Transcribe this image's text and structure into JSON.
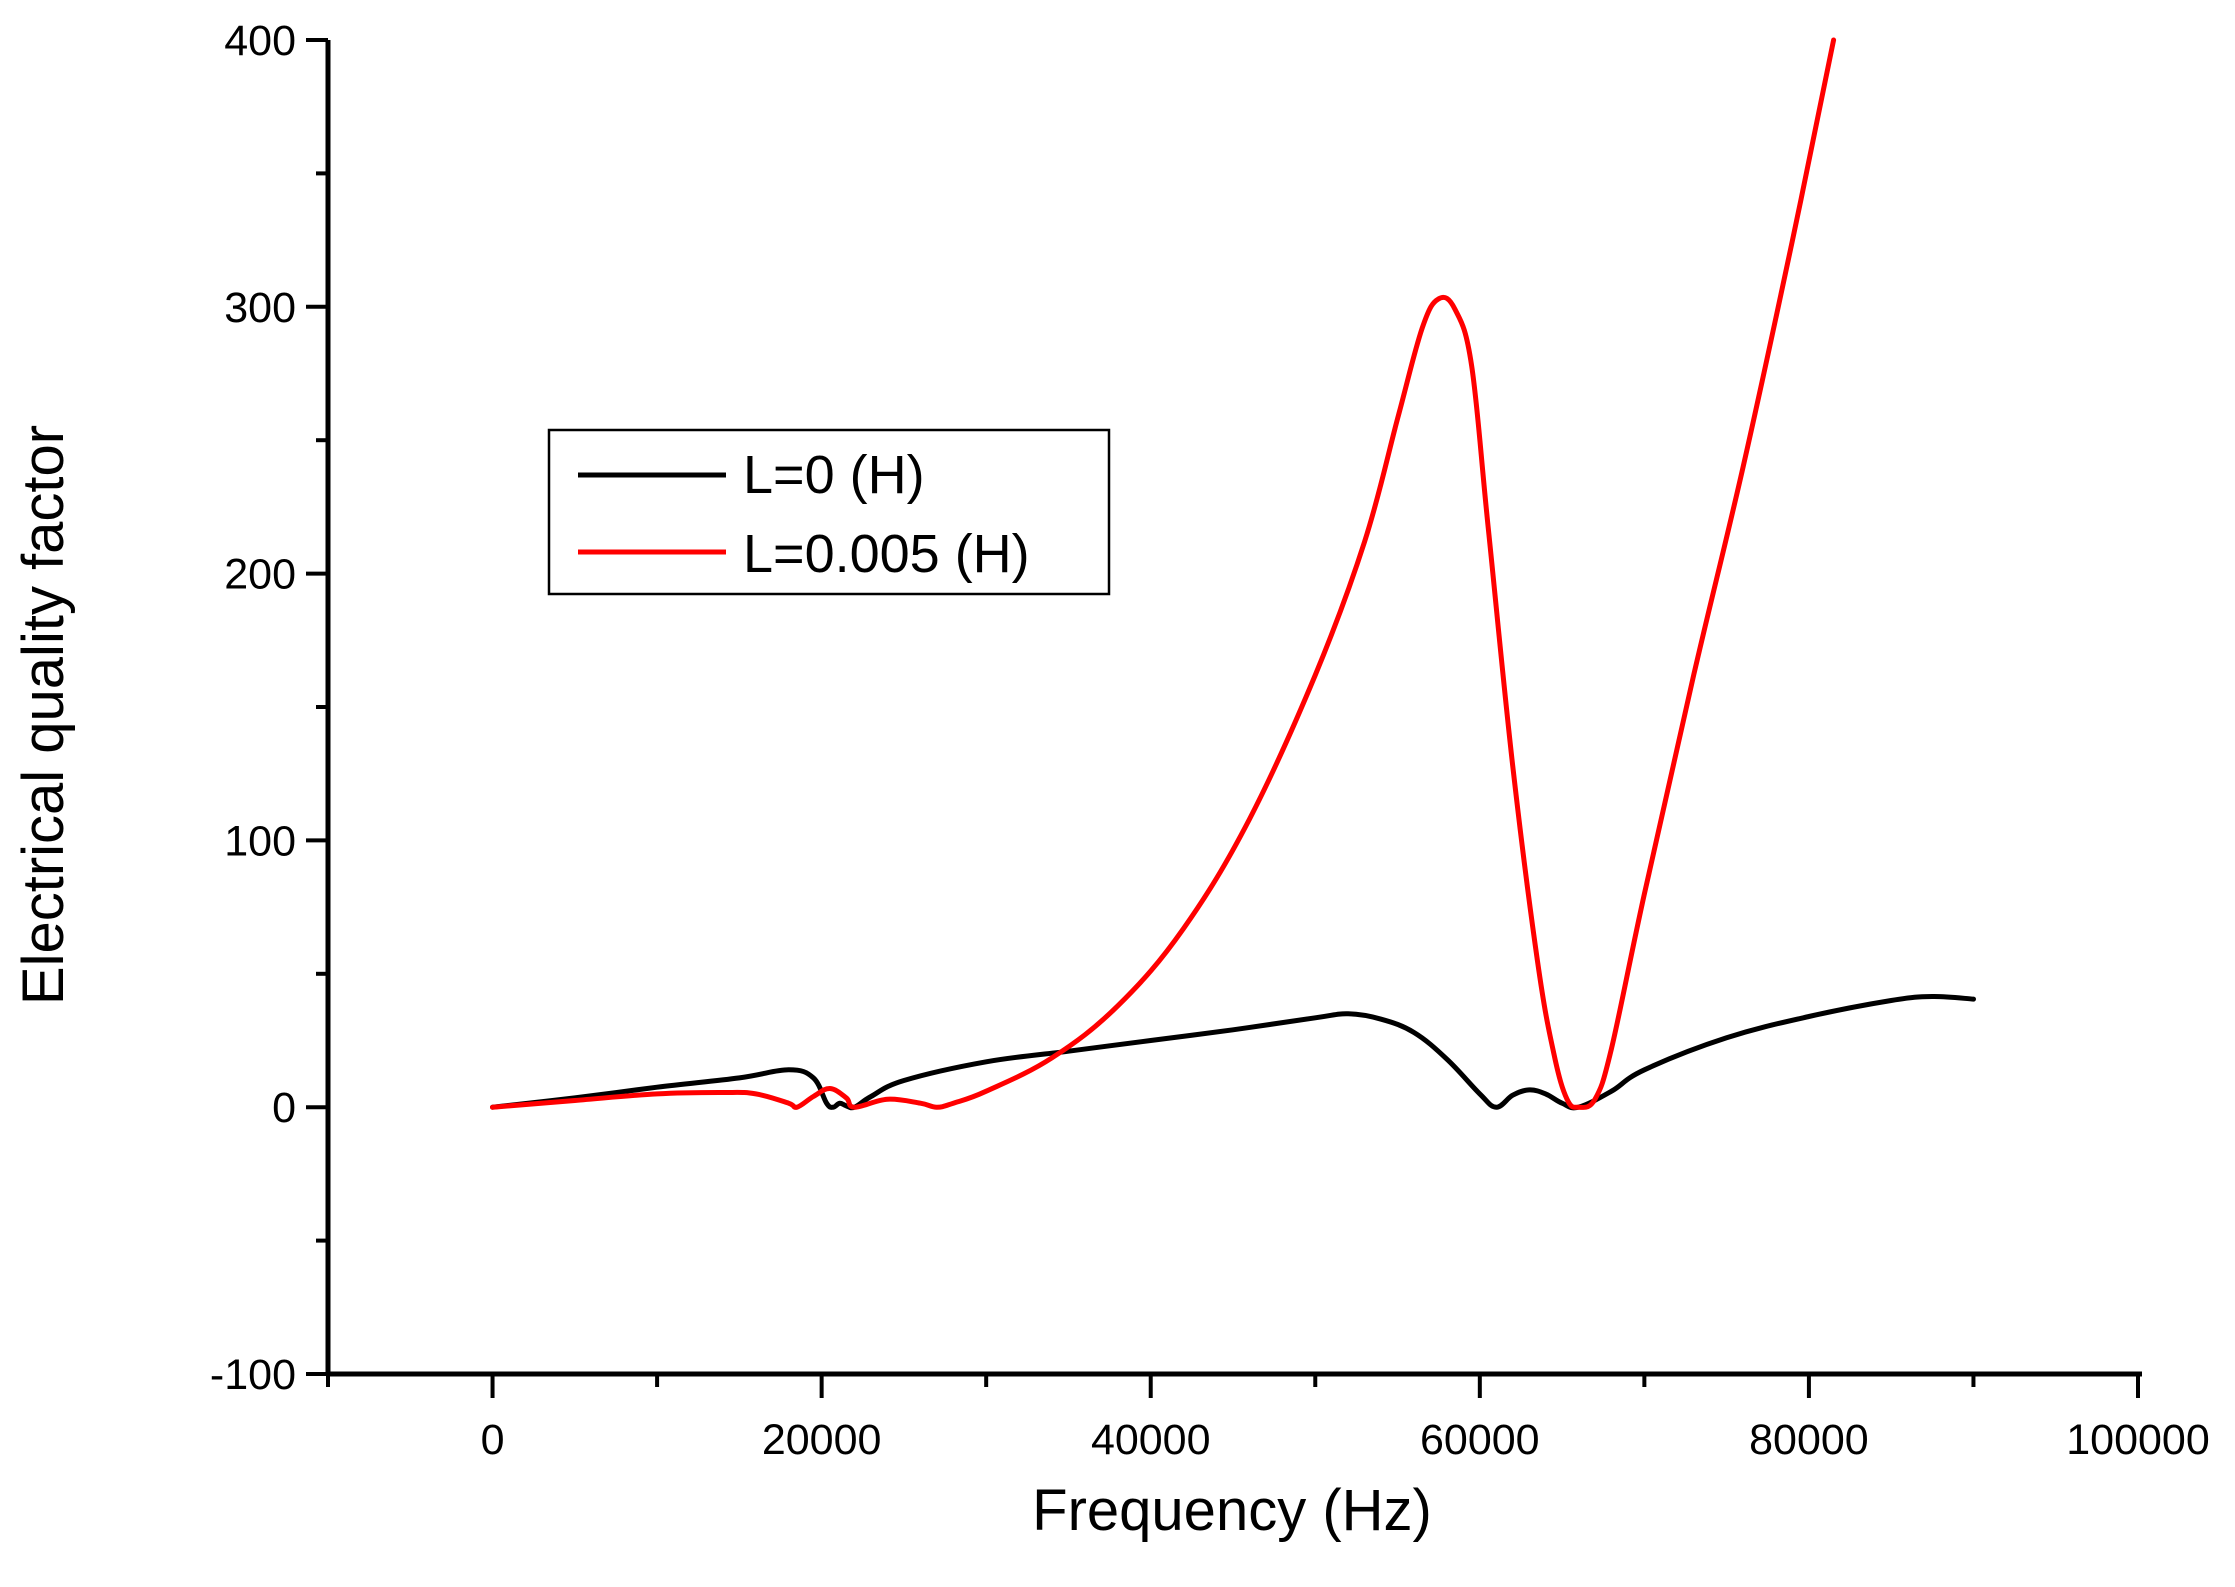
{
  "chart_data": {
    "type": "line",
    "xlabel": "Frequency (Hz)",
    "ylabel": "Electrical quality factor",
    "xlim": [
      -10000,
      100000
    ],
    "ylim": [
      -100,
      400
    ],
    "x_ticks": [
      0,
      20000,
      40000,
      60000,
      80000,
      100000
    ],
    "y_ticks": [
      -100,
      0,
      100,
      200,
      300,
      400
    ],
    "x_tick_labels": [
      "0",
      "20000",
      "40000",
      "60000",
      "80000",
      "100000"
    ],
    "y_tick_labels": [
      "-100",
      "0",
      "100",
      "200",
      "300",
      "400"
    ],
    "grid": false,
    "legend_position": "upper-left",
    "series": [
      {
        "name": "L=0 (H)",
        "color": "#000000",
        "points": [
          [
            0,
            0
          ],
          [
            5000,
            3.5
          ],
          [
            10000,
            7.5
          ],
          [
            15000,
            11
          ],
          [
            18000,
            14
          ],
          [
            19500,
            11
          ],
          [
            20300,
            1.5
          ],
          [
            20700,
            0
          ],
          [
            21100,
            1.5
          ],
          [
            21500,
            0.5
          ],
          [
            22000,
            0
          ],
          [
            23000,
            4
          ],
          [
            25000,
            10
          ],
          [
            30000,
            17
          ],
          [
            35000,
            21
          ],
          [
            40000,
            25
          ],
          [
            45000,
            29
          ],
          [
            50000,
            33.5
          ],
          [
            52000,
            35
          ],
          [
            54000,
            33
          ],
          [
            56000,
            28
          ],
          [
            58000,
            18
          ],
          [
            60000,
            5
          ],
          [
            61000,
            0
          ],
          [
            62000,
            4.5
          ],
          [
            63000,
            6.5
          ],
          [
            64000,
            5
          ],
          [
            65000,
            1.5
          ],
          [
            66000,
            0
          ],
          [
            68000,
            6
          ],
          [
            70000,
            14
          ],
          [
            75000,
            26
          ],
          [
            80000,
            34
          ],
          [
            85000,
            40
          ],
          [
            87500,
            41.5
          ],
          [
            90000,
            40.5
          ]
        ]
      },
      {
        "name": "L=0.005 (H)",
        "color": "#ff0000",
        "points": [
          [
            0,
            0
          ],
          [
            5000,
            2.5
          ],
          [
            10000,
            5
          ],
          [
            14000,
            5.5
          ],
          [
            16000,
            5
          ],
          [
            18000,
            1.5
          ],
          [
            18500,
            0
          ],
          [
            19500,
            4
          ],
          [
            20500,
            7
          ],
          [
            21500,
            3.5
          ],
          [
            22000,
            0
          ],
          [
            24000,
            3
          ],
          [
            26000,
            1.5
          ],
          [
            27000,
            0
          ],
          [
            28000,
            1.5
          ],
          [
            30000,
            6
          ],
          [
            34000,
            18.5
          ],
          [
            38000,
            38
          ],
          [
            42000,
            67
          ],
          [
            46000,
            108
          ],
          [
            50000,
            162
          ],
          [
            53000,
            212
          ],
          [
            55000,
            258
          ],
          [
            56500,
            292
          ],
          [
            57500,
            303
          ],
          [
            58500,
            299
          ],
          [
            59500,
            278
          ],
          [
            60500,
            218
          ],
          [
            62000,
            128
          ],
          [
            63500,
            55
          ],
          [
            64500,
            20
          ],
          [
            65300,
            3
          ],
          [
            66000,
            0
          ],
          [
            67000,
            3
          ],
          [
            68000,
            22
          ],
          [
            70000,
            80
          ],
          [
            73000,
            162
          ],
          [
            76000,
            240
          ],
          [
            79000,
            325
          ],
          [
            81500,
            400
          ]
        ]
      }
    ]
  }
}
